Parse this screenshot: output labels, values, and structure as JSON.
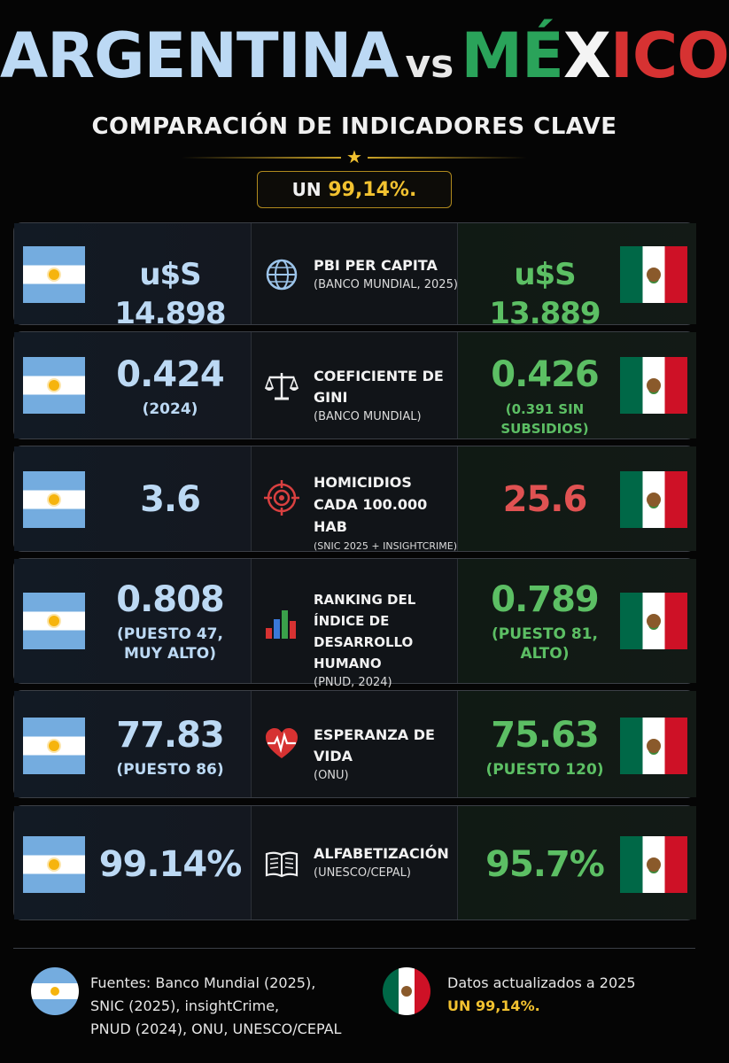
{
  "header": {
    "country_a": "ARGENTINA",
    "vs": "vs",
    "country_b_part1": "MÉ",
    "country_b_part2": "X",
    "country_b_part3": "ICO",
    "subtitle": "COMPARACIÓN DE INDICADORES CLAVE",
    "badge_prefix": "UN",
    "badge_value": "99,14%."
  },
  "colors": {
    "argentina": "#bcd9f4",
    "mexico_positive": "#5cbf64",
    "mexico_negative": "#e05252",
    "gold": "#f2c230"
  },
  "rows": [
    {
      "icon": "globe-icon",
      "title": "PBI PER CAPITA",
      "source": "(BANCO MUNDIAL, 2025)",
      "ar_value": "u$S 14.898",
      "ar_note": "",
      "mx_value": "u$S 13.889",
      "mx_note": "",
      "mx_color": "green"
    },
    {
      "icon": "scales-icon",
      "title": "COEFICIENTE DE GINI",
      "source": "(BANCO MUNDIAL)",
      "ar_value": "0.424",
      "ar_note": "(2024)",
      "mx_value": "0.426",
      "mx_note": "(0.391 SIN SUBSIDIOS)",
      "mx_color": "green"
    },
    {
      "icon": "crosshair-icon",
      "title": "HOMICIDIOS CADA 100.000 HAB",
      "source": "(SNIC 2025 + INSIGHTCRIME)",
      "ar_value": "3.6",
      "ar_note": "",
      "mx_value": "25.6",
      "mx_note": "",
      "mx_color": "red"
    },
    {
      "icon": "bar-chart-icon",
      "title": "RANKING DEL ÍNDICE DE DESARROLLO HUMANO",
      "source": "(PNUD, 2024)",
      "ar_value": "0.808",
      "ar_note": "(PUESTO 47, MUY ALTO)",
      "mx_value": "0.789",
      "mx_note": "(PUESTO 81, ALTO)",
      "mx_color": "green"
    },
    {
      "icon": "heartbeat-icon",
      "title": "ESPERANZA DE VIDA",
      "source": "(ONU)",
      "ar_value": "77.83",
      "ar_note": "(PUESTO 86)",
      "mx_value": "75.63",
      "mx_note": "(PUESTO 120)",
      "mx_color": "green"
    },
    {
      "icon": "book-icon",
      "title": "ALFABETIZACIÓN",
      "source": "(UNESCO/CEPAL)",
      "ar_value": "99.14%",
      "ar_note": "",
      "mx_value": "95.7%",
      "mx_note": "",
      "mx_color": "green"
    }
  ],
  "footer": {
    "sources_line1": "Fuentes: Banco Mundial (2025),",
    "sources_line2": "SNIC (2025), insightCrime,",
    "sources_line3": "PNUD (2024), ONU, UNESCO/CEPAL",
    "updated": "Datos actualizados a 2025",
    "updated_highlight": "UN 99,14%."
  }
}
